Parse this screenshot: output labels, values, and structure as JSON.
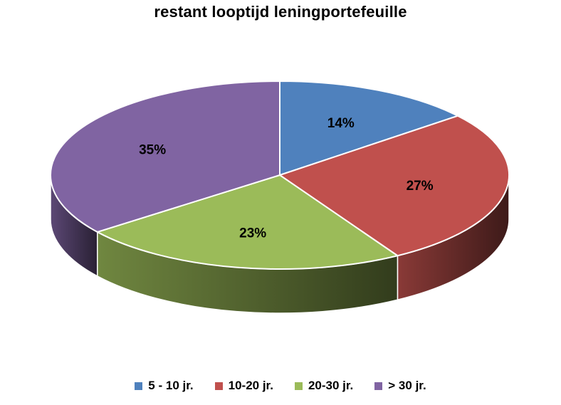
{
  "chart_data": {
    "type": "pie",
    "title": "restant looptijd leningportefeuille",
    "categories": [
      "5 - 10 jr.",
      "10-20 jr.",
      "20-30 jr.",
      "> 30 jr."
    ],
    "values": [
      14,
      27,
      23,
      35
    ],
    "data_labels": [
      "14%",
      "27%",
      "23%",
      "35%"
    ],
    "colors": [
      "#4f81bd",
      "#c0504d",
      "#9bbb59",
      "#8064a2"
    ],
    "legend_position": "bottom",
    "style": "3d"
  }
}
